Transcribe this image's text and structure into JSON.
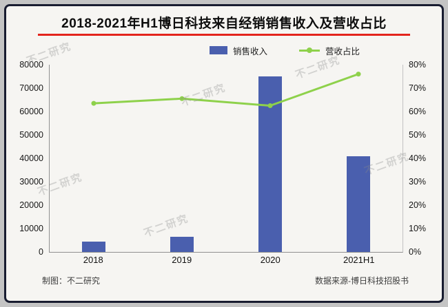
{
  "chart_data": {
    "type": "bar",
    "title": "2018-2021年H1博日科技来自经销销售收入及营收占比",
    "categories": [
      "2018",
      "2019",
      "2020",
      "2021H1"
    ],
    "series": [
      {
        "name": "销售收入",
        "type": "bar",
        "axis": "left",
        "values": [
          4500,
          6500,
          75000,
          41000
        ]
      },
      {
        "name": "营收占比",
        "type": "line",
        "axis": "right",
        "values": [
          63.5,
          65.5,
          62.5,
          76
        ]
      }
    ],
    "left_axis": {
      "min": 0,
      "max": 80000,
      "ticks": [
        "80000",
        "70000",
        "60000",
        "50000",
        "40000",
        "30000",
        "20000",
        "10000",
        "0"
      ]
    },
    "right_axis": {
      "min": 0,
      "max": 80,
      "ticks": [
        "80%",
        "70%",
        "60%",
        "50%",
        "40%",
        "30%",
        "20%",
        "10%",
        "0%"
      ]
    },
    "legend_position": "top",
    "grid": false
  },
  "footer": {
    "left": "制图：不二研究",
    "right": "数据来源-博日科技招股书"
  },
  "watermark": {
    "text": "不二研究"
  },
  "colors": {
    "bar": "#4a5fae",
    "line": "#8ed14b",
    "title_underline": "#e3241d",
    "border": "#181c30"
  }
}
